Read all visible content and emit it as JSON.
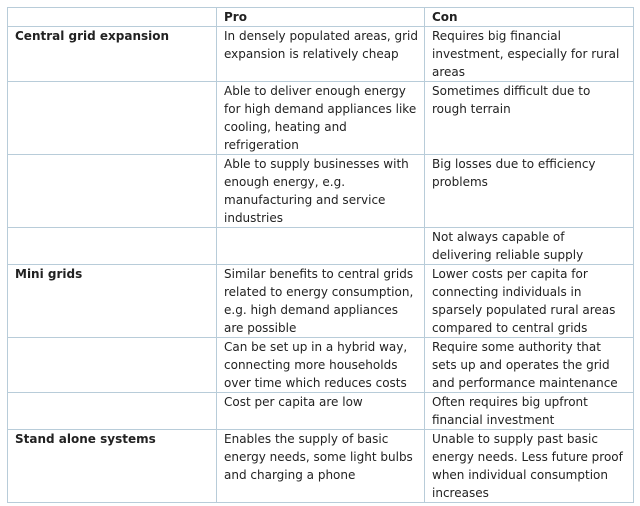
{
  "headers": [
    "",
    "Pro",
    "Con"
  ],
  "rows": [
    {
      "label": "Central grid expansion",
      "pro": "In densely populated areas, grid expansion is relatively cheap",
      "con": "Requires big financial investment, especially for rural areas"
    },
    {
      "label": "",
      "pro": "Able to deliver enough energy for high demand appliances like cooling, heating and refrigeration",
      "con": "Sometimes difficult due to rough terrain"
    },
    {
      "label": "",
      "pro": "Able to supply businesses with enough energy, e.g. manufacturing and service industries",
      "con": "Big losses due to efficiency problems"
    },
    {
      "label": "",
      "pro": "",
      "con": "Not always capable of delivering reliable supply"
    },
    {
      "label": "Mini grids",
      "pro": "Similar benefits to central grids related to energy consumption, e.g. high demand appliances are possible",
      "con": "Lower costs per capita for connecting individuals in sparsely populated rural areas compared to central grids"
    },
    {
      "label": "",
      "pro": "Can be set up in a hybrid way, connecting more households over time which reduces costs",
      "con": "Require some authority that sets up and operates the grid  and performance maintenance"
    },
    {
      "label": "",
      "pro": "Cost per capita are low",
      "con": "Often requires big upfront financial investment"
    },
    {
      "label": "Stand alone systems",
      "pro": "Enables the supply of basic energy needs, some light bulbs and charging a phone",
      "con": "Unable to supply past basic energy needs. Less future proof when individual consumption increases"
    }
  ]
}
